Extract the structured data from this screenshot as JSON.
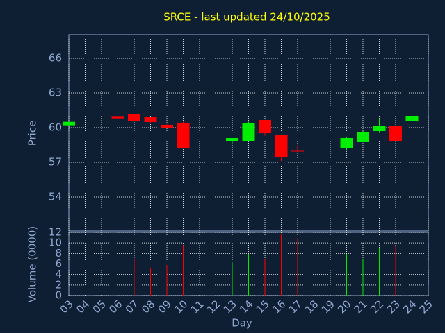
{
  "chart_data": [
    {
      "type": "candlestick",
      "title": "SRCE - last updated 24/10/2025",
      "y_label": "Price",
      "categories": [
        "03",
        "04",
        "05",
        "06",
        "07",
        "08",
        "09",
        "10",
        "11",
        "12",
        "13",
        "14",
        "15",
        "16",
        "17",
        "18",
        "19",
        "20",
        "21",
        "22",
        "23",
        "24",
        "25"
      ],
      "open": [
        60.2,
        null,
        null,
        61.0,
        61.14,
        60.9,
        60.24,
        60.36,
        null,
        null,
        58.86,
        58.86,
        60.66,
        59.34,
        58.05,
        null,
        null,
        58.2,
        58.8,
        59.7,
        60.12,
        60.6,
        null
      ],
      "close": [
        60.5,
        null,
        null,
        60.8,
        60.54,
        60.48,
        60.0,
        58.26,
        null,
        null,
        59.1,
        60.42,
        59.58,
        57.48,
        58.0,
        null,
        null,
        59.1,
        59.64,
        60.18,
        58.86,
        61.02,
        null
      ],
      "high": [
        60.5,
        null,
        null,
        61.56,
        61.14,
        60.9,
        60.3,
        60.5,
        null,
        null,
        59.1,
        60.5,
        60.66,
        59.34,
        58.5,
        null,
        null,
        59.2,
        59.7,
        60.8,
        60.2,
        61.8,
        null
      ],
      "low": [
        60.2,
        null,
        null,
        60.1,
        60.54,
        60.4,
        59.95,
        58.26,
        null,
        null,
        58.62,
        58.86,
        59.3,
        57.1,
        57.9,
        null,
        null,
        58.1,
        58.8,
        59.6,
        58.86,
        59.3,
        null
      ],
      "up_color": "#00ee00",
      "down_color": "#ff0000",
      "ylim": [
        51.06,
        68.04
      ],
      "yticks": [
        54,
        57,
        60,
        63,
        66
      ],
      "grid": true
    },
    {
      "type": "volume",
      "x_label": "Day",
      "y_label": "Volume (0000)",
      "categories": [
        "03",
        "04",
        "05",
        "06",
        "07",
        "08",
        "09",
        "10",
        "11",
        "12",
        "13",
        "14",
        "15",
        "16",
        "17",
        "18",
        "19",
        "20",
        "21",
        "22",
        "23",
        "24",
        "25"
      ],
      "values": [
        null,
        null,
        null,
        9.5,
        7.0,
        5.3,
        5.8,
        9.6,
        null,
        null,
        6.3,
        7.9,
        7.0,
        11.7,
        10.9,
        null,
        null,
        7.9,
        6.9,
        9.1,
        9.4,
        9.5,
        null
      ],
      "ylim": [
        0,
        12
      ],
      "yticks": [
        0,
        2,
        4,
        6,
        8,
        10,
        12
      ],
      "grid": true
    }
  ]
}
